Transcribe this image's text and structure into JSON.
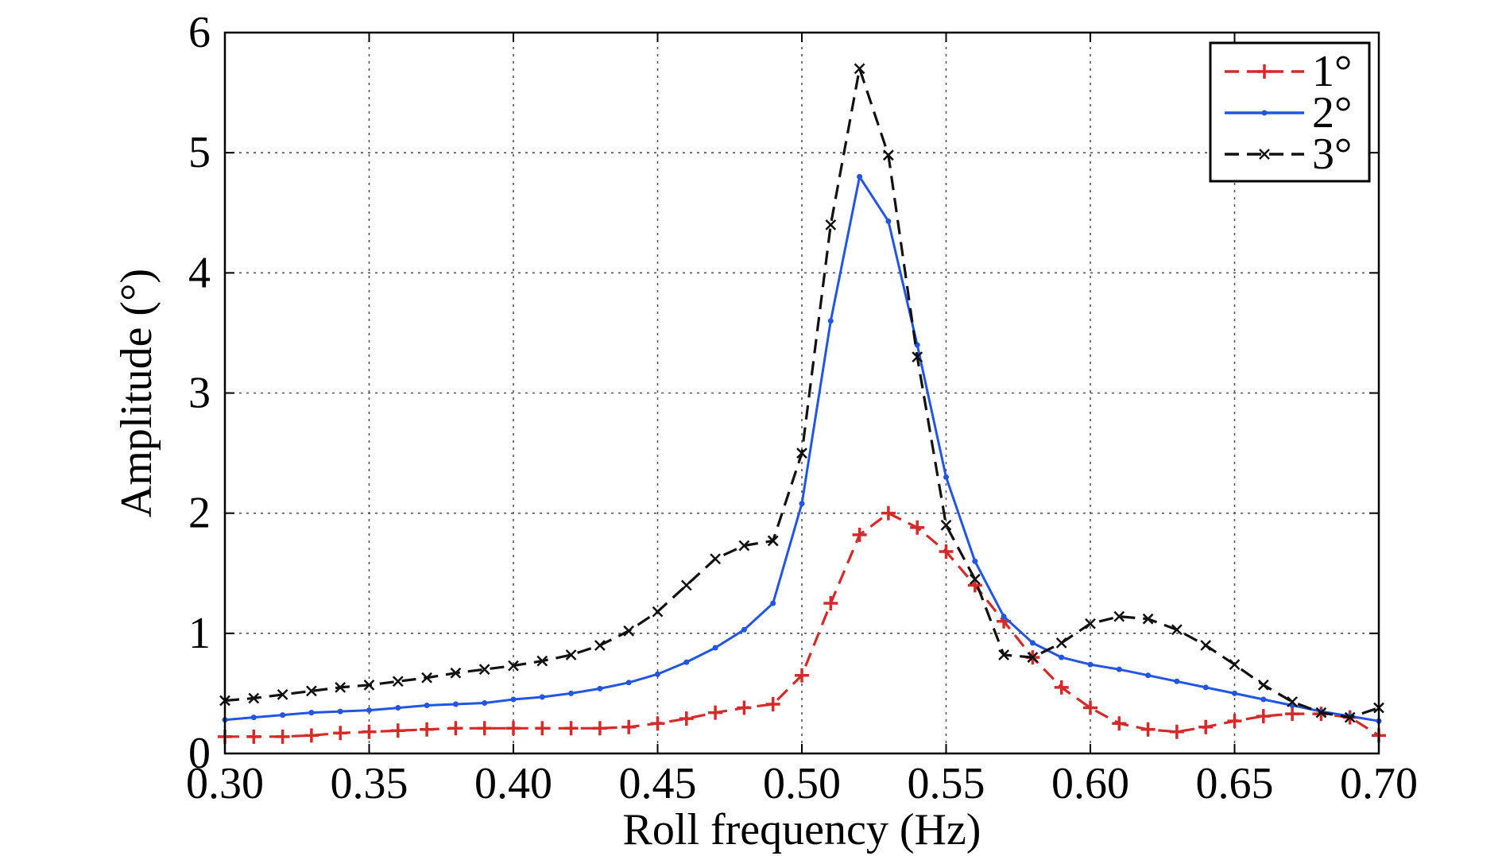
{
  "chart_data": {
    "type": "line",
    "title": "",
    "xlabel": "Roll frequency (Hz)",
    "ylabel": "Amplitude (°)",
    "xlim": [
      0.3,
      0.7
    ],
    "ylim": [
      0,
      6
    ],
    "xticks": [
      "0.30",
      "0.35",
      "0.40",
      "0.45",
      "0.50",
      "0.55",
      "0.60",
      "0.65",
      "0.70"
    ],
    "yticks": [
      "0",
      "1",
      "2",
      "3",
      "4",
      "5",
      "6"
    ],
    "grid": true,
    "legend_position": "top-right",
    "x": [
      0.3,
      0.31,
      0.32,
      0.33,
      0.34,
      0.35,
      0.36,
      0.37,
      0.38,
      0.39,
      0.4,
      0.41,
      0.42,
      0.43,
      0.44,
      0.45,
      0.46,
      0.47,
      0.48,
      0.49,
      0.5,
      0.51,
      0.52,
      0.53,
      0.54,
      0.55,
      0.56,
      0.57,
      0.58,
      0.59,
      0.6,
      0.61,
      0.62,
      0.63,
      0.64,
      0.65,
      0.66,
      0.67,
      0.68,
      0.69,
      0.7
    ],
    "series": [
      {
        "name": "1°",
        "color": "#d42a2a",
        "dash": "dashed",
        "marker": "plus",
        "values": [
          0.14,
          0.14,
          0.14,
          0.15,
          0.17,
          0.18,
          0.19,
          0.2,
          0.21,
          0.21,
          0.21,
          0.21,
          0.21,
          0.21,
          0.22,
          0.25,
          0.29,
          0.34,
          0.38,
          0.41,
          0.65,
          1.25,
          1.82,
          2.0,
          1.88,
          1.68,
          1.4,
          1.1,
          0.8,
          0.55,
          0.38,
          0.25,
          0.2,
          0.18,
          0.22,
          0.27,
          0.31,
          0.33,
          0.33,
          0.3,
          0.15
        ]
      },
      {
        "name": "2°",
        "color": "#2255e0",
        "dash": "solid",
        "marker": "dot",
        "values": [
          0.28,
          0.3,
          0.32,
          0.34,
          0.35,
          0.36,
          0.38,
          0.4,
          0.41,
          0.42,
          0.45,
          0.47,
          0.5,
          0.54,
          0.59,
          0.66,
          0.76,
          0.88,
          1.03,
          1.25,
          2.08,
          3.6,
          4.8,
          4.43,
          3.4,
          2.3,
          1.6,
          1.14,
          0.92,
          0.8,
          0.74,
          0.7,
          0.65,
          0.6,
          0.55,
          0.5,
          0.45,
          0.4,
          0.35,
          0.31,
          0.27
        ]
      },
      {
        "name": "3°",
        "color": "#111111",
        "dash": "dashed",
        "marker": "x",
        "values": [
          0.44,
          0.46,
          0.49,
          0.52,
          0.55,
          0.57,
          0.6,
          0.63,
          0.67,
          0.7,
          0.73,
          0.77,
          0.82,
          0.9,
          1.02,
          1.18,
          1.4,
          1.62,
          1.73,
          1.77,
          2.5,
          4.4,
          5.7,
          4.98,
          3.3,
          1.9,
          1.45,
          0.82,
          0.8,
          0.92,
          1.08,
          1.14,
          1.12,
          1.03,
          0.9,
          0.74,
          0.57,
          0.43,
          0.34,
          0.3,
          0.38
        ]
      }
    ]
  }
}
